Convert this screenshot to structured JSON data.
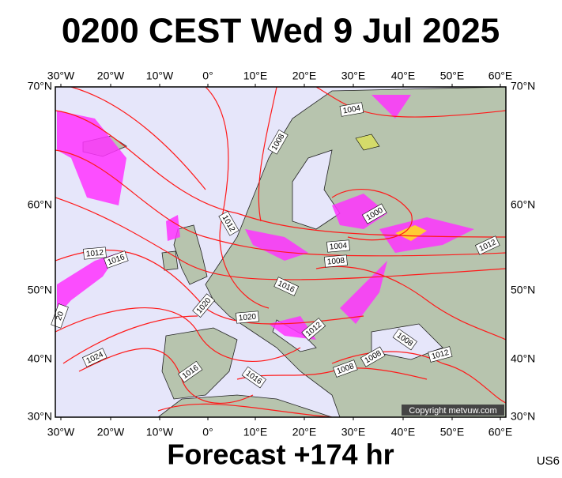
{
  "title": "0200 CEST Wed 9 Jul 2025",
  "footer": "Forecast +174 hr",
  "code": "US6",
  "copyright": "Copyright metvuw.com",
  "longitude_labels": [
    "30°W",
    "20°W",
    "10°W",
    "0°",
    "10°E",
    "20°E",
    "30°E",
    "40°E",
    "50°E",
    "60°E"
  ],
  "latitude_labels": [
    "70°N",
    "60°N",
    "50°N",
    "40°N",
    "30°N"
  ],
  "isobar_labels": [
    "1004",
    "1008",
    "1012",
    "1000",
    "1004",
    "1008",
    "1012",
    "1016",
    "1016",
    "1020",
    "1020",
    "1012",
    "1008",
    "1008",
    "1012",
    "1008",
    "1024",
    "1016",
    "1016",
    "1012",
    "20"
  ]
}
